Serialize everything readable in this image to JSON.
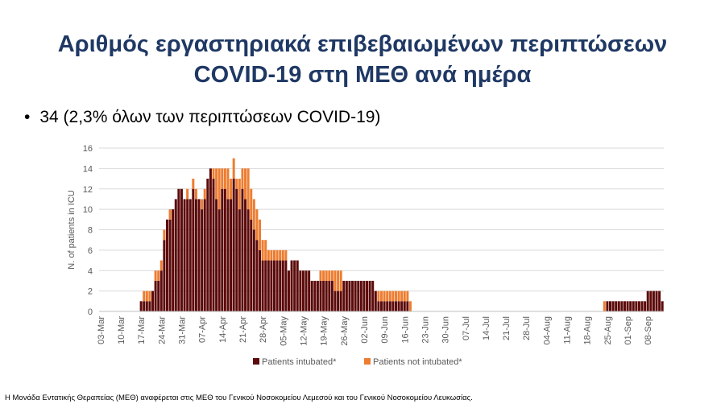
{
  "slide": {
    "title_line1": "Αριθμός εργαστηριακά επιβεβαιωμένων περιπτώσεων",
    "title_line2": "COVID-19 στη ΜΕΘ ανά ημέρα",
    "bullet": "34 (2,3% όλων των περιπτώσεων COVID-19)",
    "footnote": "Η Μονάδα Εντατικής Θεραπείας (ΜΕΘ) αναφέρεται στις ΜΕΘ του Γενικού Νοσοκομείου Λεμεσού και του Γενικού Νοσοκομείου Λευκωσίας."
  },
  "chart_data": {
    "type": "bar",
    "stacked": true,
    "title": "",
    "xlabel": "",
    "ylabel": "N. of patients in ICU",
    "ylim": [
      0,
      16
    ],
    "yticks": [
      0,
      2,
      4,
      6,
      8,
      10,
      12,
      14,
      16
    ],
    "x_start": "03-Mar",
    "x_tick_labels": [
      "03-Mar",
      "10-Mar",
      "17-Mar",
      "24-Mar",
      "31-Mar",
      "07-Apr",
      "14-Apr",
      "21-Apr",
      "28-Apr",
      "05-May",
      "12-May",
      "19-May",
      "26-May",
      "02-Jun",
      "09-Jun",
      "16-Jun",
      "23-Jun",
      "30-Jun",
      "07-Jul",
      "14-Jul",
      "21-Jul",
      "28-Jul",
      "04-Aug",
      "11-Aug",
      "18-Aug",
      "25-Aug",
      "01-Sep",
      "08-Sep"
    ],
    "grid": true,
    "legend_position": "bottom",
    "colors": {
      "intubated": "#5c0a0a",
      "not_intubated": "#ed7d31",
      "grid": "#d9d9d9",
      "axis_text": "#595959"
    },
    "series": [
      {
        "name": "Patients intubated*",
        "values": [
          0,
          0,
          0,
          0,
          0,
          0,
          0,
          0,
          0,
          0,
          0,
          0,
          0,
          0,
          1,
          1,
          1,
          1,
          2,
          3,
          3,
          4,
          7,
          9,
          9,
          10,
          11,
          12,
          12,
          11,
          11,
          11,
          12,
          11,
          11,
          10,
          11,
          13,
          14,
          13,
          11,
          10,
          12,
          12,
          11,
          11,
          13,
          12,
          10,
          12,
          11,
          10,
          9,
          8,
          7,
          6,
          5,
          5,
          5,
          5,
          5,
          5,
          5,
          5,
          5,
          4,
          5,
          5,
          5,
          4,
          4,
          4,
          4,
          3,
          3,
          3,
          3,
          3,
          3,
          3,
          3,
          2,
          2,
          2,
          3,
          3,
          3,
          3,
          3,
          3,
          3,
          3,
          3,
          3,
          3,
          2,
          1,
          1,
          1,
          1,
          1,
          1,
          1,
          1,
          1,
          1,
          1,
          0,
          0,
          0,
          0,
          0,
          0,
          0,
          0,
          0,
          0,
          0,
          0,
          0,
          0,
          0,
          0,
          0,
          0,
          0,
          0,
          0,
          0,
          0,
          0,
          0,
          0,
          0,
          0,
          0,
          0,
          0,
          0,
          0,
          0,
          0,
          0,
          0,
          0,
          0,
          0,
          0,
          0,
          0,
          0,
          0,
          0,
          0,
          0,
          0,
          0,
          0,
          0,
          0,
          0,
          0,
          0,
          0,
          0,
          0,
          0,
          0,
          0,
          0,
          0,
          0,
          0,
          0,
          0,
          1,
          1,
          1,
          1,
          1,
          1,
          1,
          1,
          1,
          1,
          1,
          1,
          1,
          1,
          2,
          2,
          2,
          2,
          2,
          1
        ]
      },
      {
        "name": "Patients not intubated*",
        "values": [
          0,
          0,
          0,
          0,
          0,
          0,
          0,
          0,
          0,
          0,
          0,
          0,
          0,
          0,
          0,
          1,
          1,
          1,
          0,
          1,
          1,
          1,
          1,
          0,
          1,
          0,
          0,
          0,
          0,
          0,
          1,
          0,
          1,
          1,
          0,
          1,
          1,
          0,
          0,
          1,
          3,
          4,
          2,
          2,
          3,
          2,
          2,
          1,
          3,
          2,
          3,
          4,
          3,
          3,
          3,
          3,
          2,
          2,
          1,
          1,
          1,
          1,
          1,
          1,
          1,
          0,
          0,
          0,
          0,
          0,
          0,
          0,
          0,
          0,
          0,
          0,
          1,
          1,
          1,
          1,
          1,
          2,
          2,
          2,
          0,
          0,
          0,
          0,
          0,
          0,
          0,
          0,
          0,
          0,
          0,
          0,
          1,
          1,
          1,
          1,
          1,
          1,
          1,
          1,
          1,
          1,
          1,
          1,
          0,
          0,
          0,
          0,
          0,
          0,
          0,
          0,
          0,
          0,
          0,
          0,
          0,
          0,
          0,
          0,
          0,
          0,
          0,
          0,
          0,
          0,
          0,
          0,
          0,
          0,
          0,
          0,
          0,
          0,
          0,
          0,
          0,
          0,
          0,
          0,
          0,
          0,
          0,
          0,
          0,
          0,
          0,
          0,
          0,
          0,
          0,
          0,
          0,
          0,
          0,
          0,
          0,
          0,
          0,
          0,
          0,
          0,
          0,
          0,
          0,
          0,
          0,
          0,
          0,
          0,
          1,
          0,
          0,
          0,
          0,
          0,
          0,
          0,
          0,
          0,
          0,
          0,
          0,
          0,
          0,
          0,
          0,
          0,
          0,
          0,
          0
        ]
      }
    ]
  }
}
